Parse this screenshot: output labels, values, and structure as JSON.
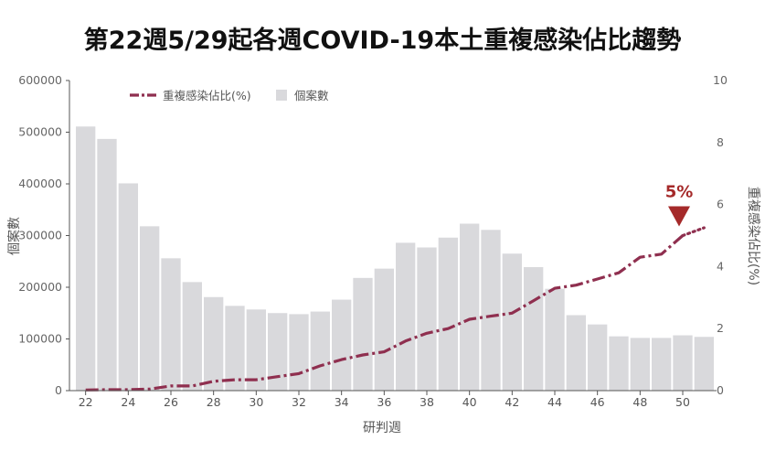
{
  "chart_data": {
    "type": "bar",
    "title": "第22週5/29起各週COVID-19本土重複感染佔比趨勢",
    "xlabel": "研判週",
    "ylabel_left": "個案數",
    "ylabel_right": "重複感染佔比(%)",
    "ylim_left": [
      0,
      600000
    ],
    "ylim_right": [
      0,
      10
    ],
    "y_ticks_left": [
      "0",
      "100000",
      "200000",
      "300000",
      "400000",
      "500000",
      "600000"
    ],
    "y_ticks_right": [
      "0",
      "2",
      "4",
      "6",
      "8",
      "10"
    ],
    "x_tick_labels": [
      "22",
      "24",
      "26",
      "28",
      "30",
      "32",
      "34",
      "36",
      "38",
      "40",
      "42",
      "44",
      "46",
      "48",
      "50"
    ],
    "grid": false,
    "legend_position": "top-left",
    "categories": [
      "22",
      "23",
      "24",
      "25",
      "26",
      "27",
      "28",
      "29",
      "30",
      "31",
      "32",
      "33",
      "34",
      "35",
      "36",
      "37",
      "38",
      "39",
      "40",
      "41",
      "42",
      "43",
      "44",
      "45",
      "46",
      "47",
      "48",
      "49",
      "50",
      "51"
    ],
    "series": [
      {
        "name": "個案數",
        "kind": "bar",
        "axis": "left",
        "color": "#d9d9dc",
        "values": [
          511000,
          487000,
          401000,
          318000,
          256000,
          210000,
          181000,
          164000,
          157000,
          150000,
          148000,
          153000,
          176000,
          218000,
          236000,
          286000,
          277000,
          296000,
          323000,
          311000,
          265000,
          239000,
          197000,
          146000,
          128000,
          105000,
          102000,
          102000,
          107000,
          104000
        ]
      },
      {
        "name": "重複感染佔比(%)",
        "kind": "line",
        "axis": "right",
        "color": "#8f2f4f",
        "style": "dashed",
        "values": [
          0.02,
          0.03,
          0.03,
          0.05,
          0.15,
          0.15,
          0.3,
          0.35,
          0.35,
          0.45,
          0.55,
          0.8,
          1.0,
          1.15,
          1.25,
          1.6,
          1.85,
          2.0,
          2.3,
          2.4,
          2.5,
          2.9,
          3.3,
          3.4,
          3.6,
          3.8,
          4.3,
          4.4,
          5.0,
          5.25
        ]
      }
    ],
    "annotation": {
      "label": "5%",
      "color": "#a52a2a",
      "at_category": "50"
    }
  }
}
